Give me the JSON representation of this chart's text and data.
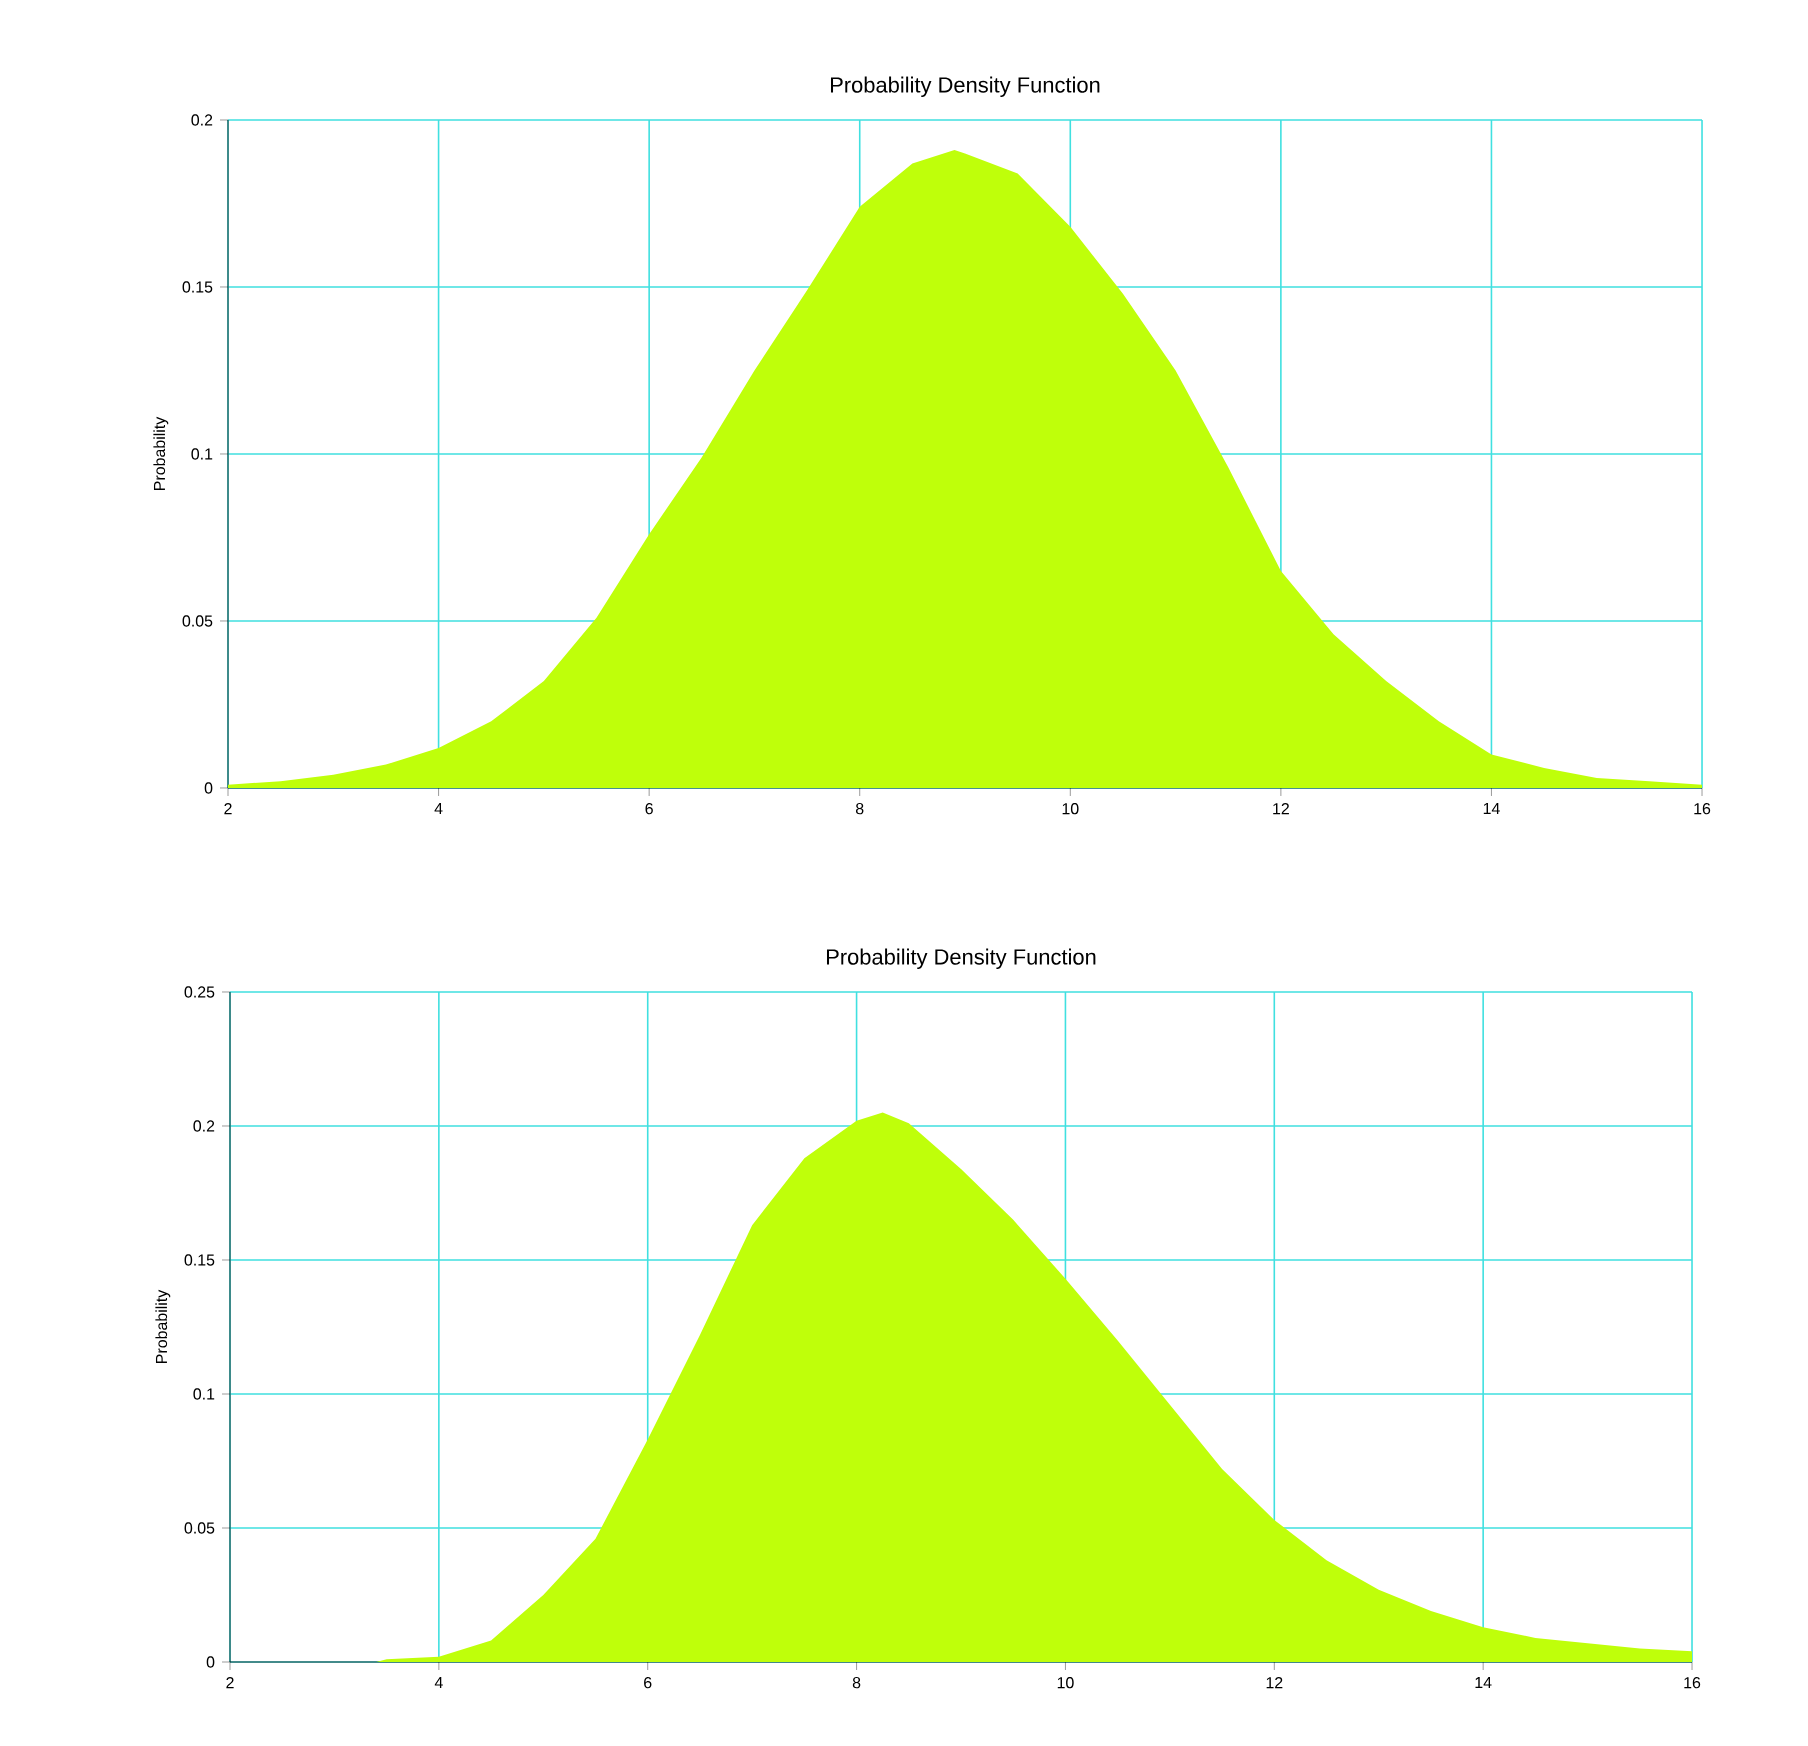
{
  "chart_data": [
    {
      "type": "area",
      "title": "Probability Density Function",
      "ylabel": "Probability",
      "color": "#bfff0a",
      "grid": true,
      "x": [
        2,
        2.5,
        3,
        3.5,
        4,
        4.5,
        5,
        5.5,
        6,
        6.5,
        7,
        7.5,
        8,
        8.5,
        8.9,
        9,
        9.5,
        10,
        10.5,
        11,
        11.5,
        12,
        12.5,
        13,
        13.5,
        14,
        14.5,
        15,
        15.5,
        16
      ],
      "values": [
        0.001,
        0.002,
        0.004,
        0.007,
        0.012,
        0.02,
        0.032,
        0.051,
        0.076,
        0.099,
        0.125,
        0.149,
        0.174,
        0.187,
        0.191,
        0.19,
        0.184,
        0.168,
        0.148,
        0.125,
        0.096,
        0.065,
        0.046,
        0.032,
        0.02,
        0.01,
        0.006,
        0.003,
        0.002,
        0.001
      ],
      "xlim": [
        2,
        16
      ],
      "ylim": [
        0,
        0.2
      ],
      "xticks": [
        2,
        4,
        6,
        8,
        10,
        12,
        14,
        16
      ],
      "yticks": [
        0,
        0.05,
        0.1,
        0.15,
        0.2
      ]
    },
    {
      "type": "area",
      "title": "Probability Density Function",
      "ylabel": "Probability",
      "color": "#bfff0a",
      "grid": true,
      "x": [
        3.4,
        3.5,
        4,
        4.5,
        5,
        5.5,
        6,
        6.5,
        7,
        7.5,
        8,
        8.25,
        8.5,
        9,
        9.5,
        10,
        10.5,
        11,
        11.5,
        12,
        12.5,
        13,
        13.5,
        14,
        14.5,
        15,
        15.5,
        16
      ],
      "values": [
        0,
        0.001,
        0.002,
        0.008,
        0.025,
        0.046,
        0.083,
        0.122,
        0.163,
        0.188,
        0.202,
        0.205,
        0.201,
        0.184,
        0.165,
        0.143,
        0.12,
        0.096,
        0.072,
        0.053,
        0.038,
        0.027,
        0.019,
        0.013,
        0.009,
        0.007,
        0.005,
        0.004
      ],
      "xlim": [
        2,
        16
      ],
      "ylim": [
        0,
        0.25
      ],
      "xticks": [
        2,
        4,
        6,
        8,
        10,
        12,
        14,
        16
      ],
      "yticks": [
        0,
        0.05,
        0.1,
        0.15,
        0.2,
        0.25
      ]
    }
  ]
}
